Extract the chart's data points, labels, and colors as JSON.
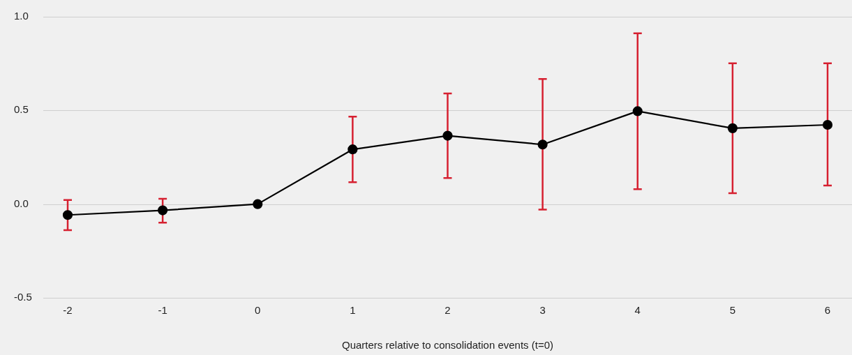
{
  "chart_data": {
    "type": "line",
    "xlabel": "Quarters relative to consolidation events (t=0)",
    "categories": [
      "-2",
      "-1",
      "0",
      "1",
      "2",
      "3",
      "4",
      "5",
      "6"
    ],
    "series": [
      {
        "color": "#000000",
        "values": [
          -0.058,
          -0.033,
          0.0,
          0.292,
          0.365,
          0.318,
          0.496,
          0.405,
          0.423
        ],
        "errors": [
          [
            -0.139,
            0.022
          ],
          [
            -0.099,
            0.029
          ],
          null,
          [
            0.117,
            0.467
          ],
          [
            0.139,
            0.591
          ],
          [
            -0.029,
            0.668
          ],
          [
            0.08,
            0.912
          ],
          [
            0.058,
            0.752
          ],
          [
            0.099,
            0.752
          ]
        ]
      }
    ],
    "ylim": [
      -0.5,
      1.0
    ],
    "yticks": [
      {
        "value": -0.5,
        "label": "-0.5"
      },
      {
        "value": 0,
        "label": "0.0"
      },
      {
        "value": 0.5,
        "label": "0.5"
      },
      {
        "value": 1,
        "label": "1.0"
      }
    ],
    "grid": "y",
    "legend": false,
    "marker": "circle",
    "line_style": "solid"
  }
}
